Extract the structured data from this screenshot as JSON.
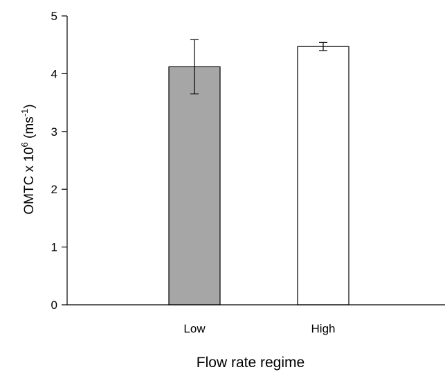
{
  "chart_data": {
    "type": "bar",
    "categories": [
      "Low",
      "High"
    ],
    "values": [
      4.12,
      4.47
    ],
    "errors": [
      0.47,
      0.07
    ],
    "bar_colors": [
      "#a6a6a6",
      "#ffffff"
    ],
    "xlabel": "Flow rate regime",
    "ylabel": {
      "prefix": "OMTC x 10",
      "exp1": "6",
      "mid": " (ms",
      "exp2": "-1",
      "suffix": ")"
    },
    "ylim": [
      0,
      5
    ],
    "yticks": [
      "0",
      "1",
      "2",
      "3",
      "4",
      "5"
    ],
    "grid": false,
    "legend": "none"
  }
}
